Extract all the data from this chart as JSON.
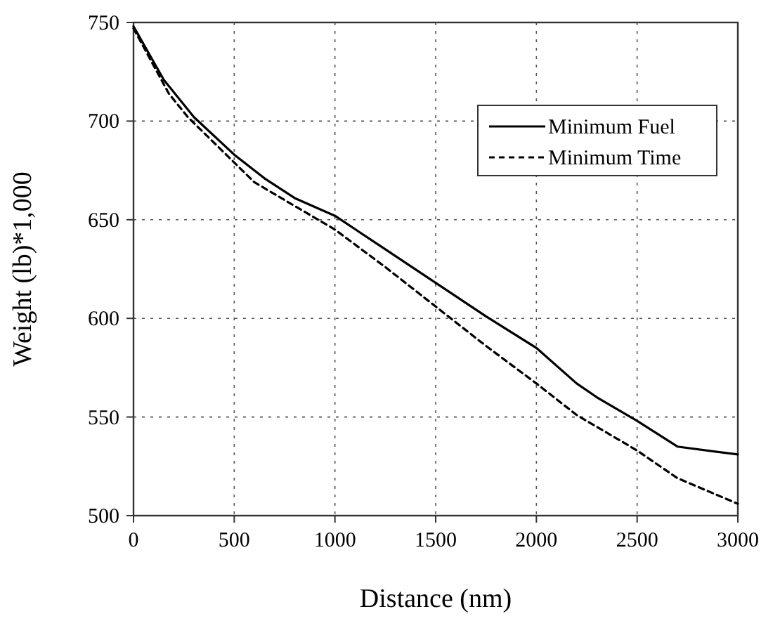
{
  "chart_data": {
    "type": "line",
    "xlabel": "Distance (nm)",
    "ylabel": "Weight (lb)*1,000",
    "xlim": [
      0,
      3000
    ],
    "ylim": [
      500,
      750
    ],
    "xticks": [
      0,
      500,
      1000,
      1500,
      2000,
      2500,
      3000
    ],
    "yticks": [
      500,
      550,
      600,
      650,
      700,
      750
    ],
    "grid": true,
    "legend": "top right",
    "marker": "none",
    "series": [
      {
        "name": "Minimum Fuel",
        "color": "#000000",
        "line_style": "solid",
        "x": [
          0,
          150,
          300,
          500,
          650,
          800,
          1000,
          1250,
          1500,
          1750,
          2000,
          2200,
          2300,
          2500,
          2700,
          3000
        ],
        "values": [
          748,
          721,
          702,
          683,
          671,
          661,
          652,
          635,
          618,
          601,
          585,
          567,
          560,
          548,
          535,
          531
        ]
      },
      {
        "name": "Minimum Time",
        "color": "#000000",
        "line_style": "dashed",
        "x": [
          0,
          175,
          270,
          500,
          600,
          800,
          1000,
          1250,
          1500,
          1750,
          2000,
          2200,
          2500,
          2700,
          3000
        ],
        "values": [
          747,
          714,
          702,
          679,
          669,
          657,
          645,
          626,
          606,
          586,
          567,
          551,
          533,
          519,
          506
        ]
      }
    ]
  }
}
